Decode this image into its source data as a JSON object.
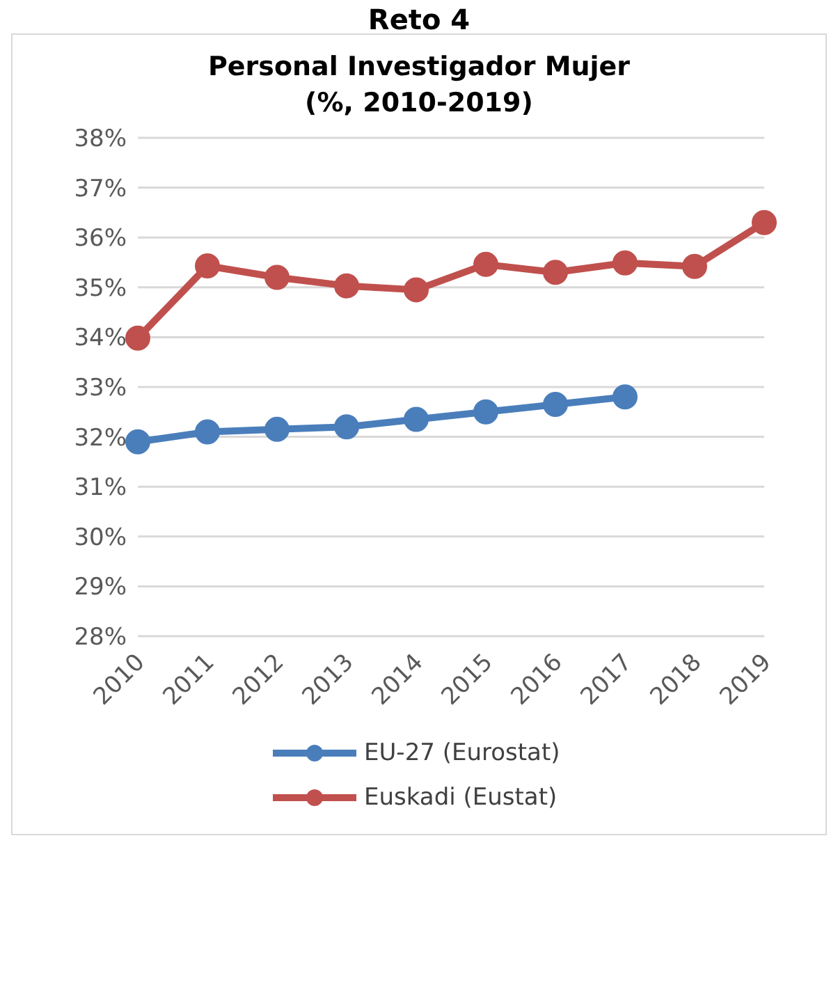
{
  "chart_data": {
    "type": "line",
    "title": "Personal Investigador Mujer\n(%, 2010-2019)",
    "annotations": [
      "Reto 4"
    ],
    "categories": [
      "2010",
      "2011",
      "2012",
      "2013",
      "2014",
      "2015",
      "2016",
      "2017",
      "2018",
      "2019"
    ],
    "series": [
      {
        "name": "EU-27 (Eurostat)",
        "color": "#4a7ebb",
        "values": [
          31.9,
          32.1,
          32.15,
          32.2,
          32.35,
          32.5,
          32.65,
          32.8,
          null,
          null
        ]
      },
      {
        "name": "Euskadi (Eustat)",
        "color": "#c0504d",
        "values": [
          33.98,
          35.43,
          35.2,
          35.03,
          34.95,
          35.46,
          35.3,
          35.49,
          35.42,
          36.3
        ]
      }
    ],
    "ylim": [
      28,
      38
    ],
    "yticks": [
      {
        "value": 28,
        "label": "28%"
      },
      {
        "value": 29,
        "label": "29%"
      },
      {
        "value": 30,
        "label": "30%"
      },
      {
        "value": 31,
        "label": "31%"
      },
      {
        "value": 32,
        "label": "32%"
      },
      {
        "value": 33,
        "label": "33%"
      },
      {
        "value": 34,
        "label": "34%"
      },
      {
        "value": 35,
        "label": "35%"
      },
      {
        "value": 36,
        "label": "36%"
      },
      {
        "value": 37,
        "label": "37%"
      },
      {
        "value": 38,
        "label": "38%"
      }
    ],
    "grid": "y",
    "legend": "bottom",
    "marker": "circle",
    "line_style": "solid"
  }
}
